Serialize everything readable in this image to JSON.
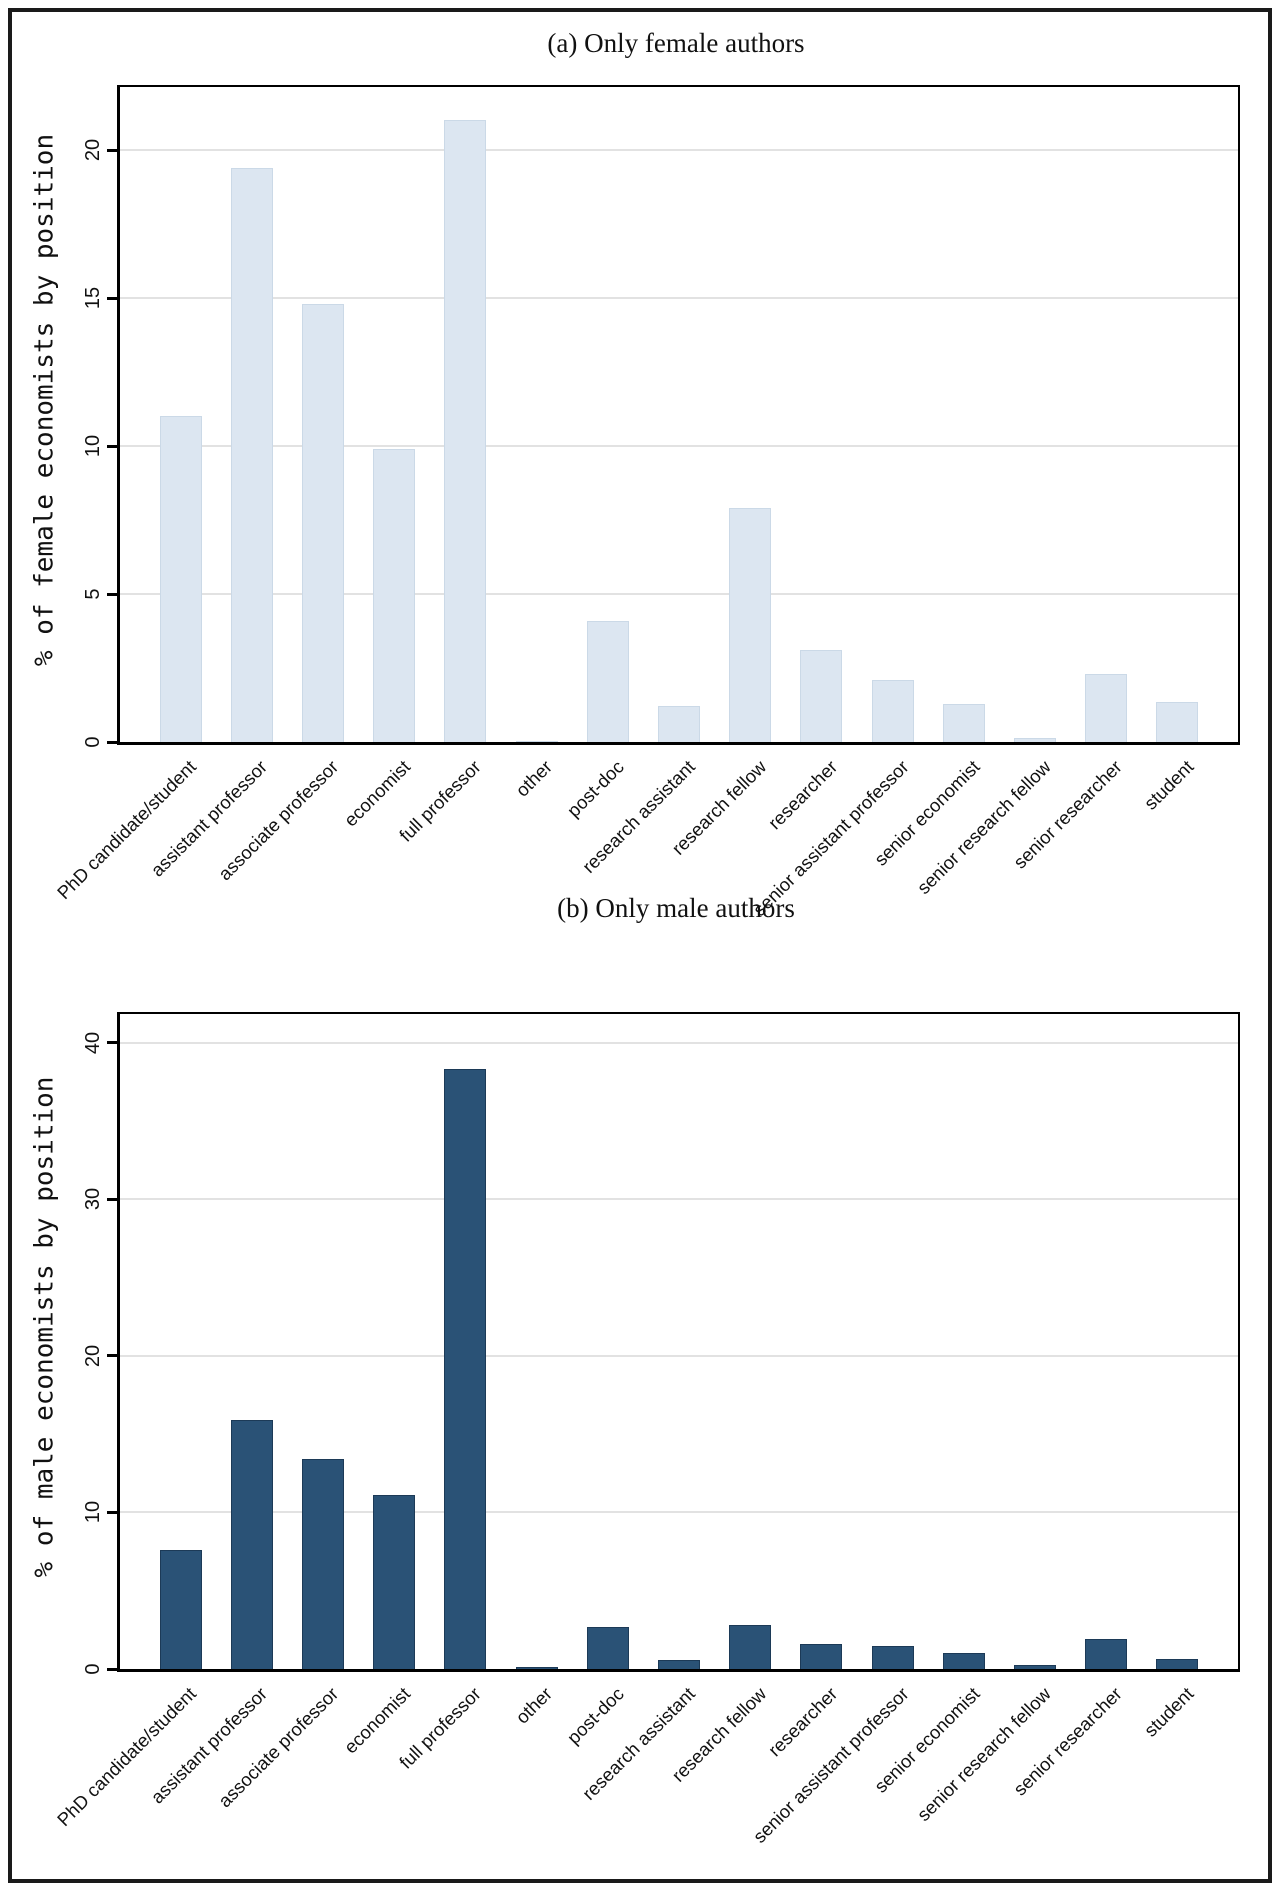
{
  "figure": {
    "background": "#ffffff",
    "frame_color": "#1a1a1a",
    "gridline_color": "#e2e2e2",
    "axis_color": "#000000"
  },
  "chart_data": [
    {
      "type": "bar",
      "title": "(a) Only female authors",
      "ylabel": "% of female economists by position",
      "xlabel": "",
      "categories": [
        "PhD candidate/student",
        "assistant professor",
        "associate professor",
        "economist",
        "full professor",
        "other",
        "post-doc",
        "research assistant",
        "research fellow",
        "researcher",
        "senior assistant professor",
        "senior economist",
        "senior research fellow",
        "senior researcher",
        "student"
      ],
      "values": [
        11.0,
        19.4,
        14.8,
        9.9,
        21.0,
        0.05,
        4.1,
        1.2,
        7.9,
        3.1,
        2.1,
        1.3,
        0.15,
        2.3,
        1.35
      ],
      "ylim": [
        0,
        22.1
      ],
      "yticks": [
        0,
        5,
        10,
        15,
        20
      ],
      "grid": true,
      "legend": "none",
      "bar_color": "#dce6f1",
      "bar_border_color": "#cbd9e7"
    },
    {
      "type": "bar",
      "title": "(b) Only male authors",
      "ylabel": "% of male economists by position",
      "xlabel": "",
      "categories": [
        "PhD candidate/student",
        "assistant professor",
        "associate professor",
        "economist",
        "full professor",
        "other",
        "post-doc",
        "research assistant",
        "research fellow",
        "researcher",
        "senior assistant professor",
        "senior economist",
        "senior research fellow",
        "senior researcher",
        "student"
      ],
      "values": [
        7.6,
        15.9,
        13.4,
        11.1,
        38.3,
        0.1,
        2.7,
        0.6,
        2.8,
        1.6,
        1.5,
        1.0,
        0.25,
        1.9,
        0.65
      ],
      "ylim": [
        0,
        41.8
      ],
      "yticks": [
        0,
        10,
        20,
        30,
        40
      ],
      "grid": true,
      "legend": "none",
      "bar_color": "#2a5276",
      "bar_border_color": "#1c3a57"
    }
  ]
}
